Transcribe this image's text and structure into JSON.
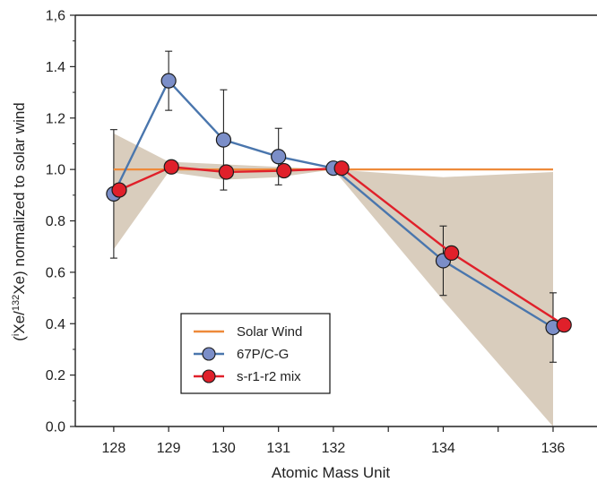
{
  "chart_data": {
    "type": "line",
    "title": "",
    "xlabel": "Atomic Mass Unit",
    "ylabel_parts": [
      "(",
      "i",
      "Xe/",
      "132",
      "Xe) normalized to solar wind"
    ],
    "x_ticks": [
      128,
      129,
      130,
      131,
      132,
      134,
      136
    ],
    "y_ticks": [
      "0.0",
      "0.2",
      "0.4",
      "0.6",
      "0.8",
      "1.0",
      "1.2",
      "1.4",
      "1,6"
    ],
    "xlim": [
      127.3,
      136.8
    ],
    "ylim": [
      0.0,
      1.6
    ],
    "grid": false,
    "legend_position": "bottom-center",
    "colors": {
      "solar_wind": "#ee8a3a",
      "comet": "#4a76ad",
      "comet_marker": "#7b8ec8",
      "mix": "#e0202a",
      "band": "#d9cdbd",
      "axis": "#222222"
    },
    "band": {
      "x": [
        128,
        129,
        130,
        131,
        132,
        134,
        136
      ],
      "lower": [
        0.69,
        0.99,
        0.96,
        0.97,
        1.0,
        0.49,
        0.0
      ],
      "upper": [
        1.14,
        1.03,
        1.02,
        1.01,
        1.0,
        0.97,
        0.99
      ]
    },
    "series": [
      {
        "name": "Solar Wind",
        "style": "line",
        "x": [
          128,
          136
        ],
        "values": [
          1.0,
          1.0
        ]
      },
      {
        "name": "67P/C-G",
        "style": "line-marker",
        "x": [
          128,
          129,
          130,
          131,
          132,
          134,
          136
        ],
        "values": [
          0.905,
          1.345,
          1.115,
          1.05,
          1.005,
          0.645,
          0.385
        ],
        "err_low": [
          0.655,
          1.23,
          0.92,
          0.94,
          1.005,
          0.51,
          0.25
        ],
        "err_high": [
          1.155,
          1.46,
          1.31,
          1.16,
          1.005,
          0.78,
          0.52
        ]
      },
      {
        "name": "s-r1-r2 mix",
        "style": "line-marker",
        "x": [
          128.1,
          129.05,
          130.05,
          131.1,
          132.15,
          134.15,
          136.2
        ],
        "values": [
          0.92,
          1.01,
          0.99,
          0.995,
          1.005,
          0.675,
          0.395
        ]
      }
    ]
  }
}
